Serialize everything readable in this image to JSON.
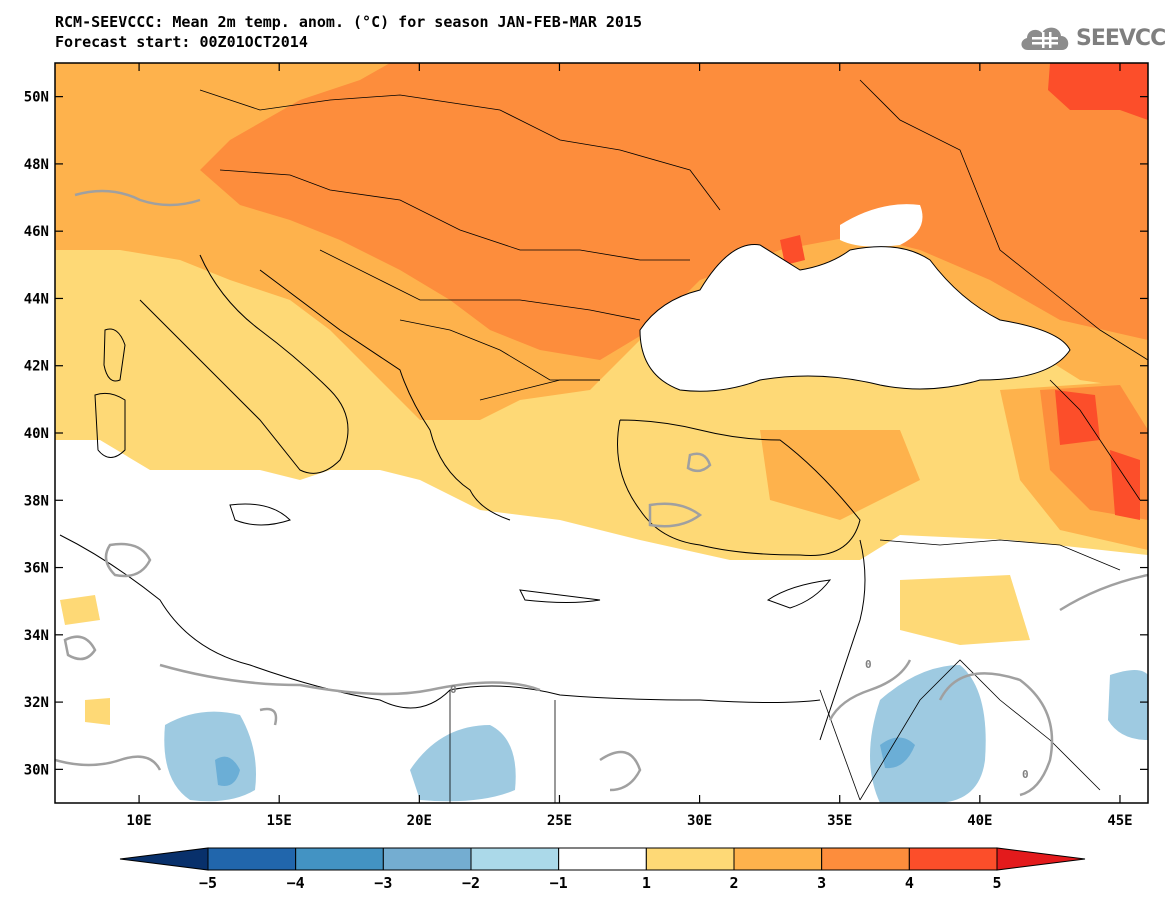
{
  "title": {
    "line1": "RCM-SEEVCCC: Mean 2m temp. anom. (°C) for season JAN-FEB-MAR 2015",
    "line2": "Forecast start: 00Z01OCT2014"
  },
  "logo": {
    "text": "SEEVCCC",
    "icon": "cloud-icon"
  },
  "map": {
    "lon_range": [
      7,
      46
    ],
    "lat_range": [
      29,
      51
    ],
    "lon_ticks": [
      "10E",
      "15E",
      "20E",
      "25E",
      "30E",
      "35E",
      "40E",
      "45E"
    ],
    "lat_ticks": [
      "50N",
      "48N",
      "46N",
      "44N",
      "42N",
      "40N",
      "38N",
      "36N",
      "34N",
      "32N",
      "30N"
    ],
    "contour_label": "0"
  },
  "colorbar": {
    "tick_labels": [
      "-5",
      "-4",
      "-3",
      "-2",
      "-1",
      "1",
      "2",
      "3",
      "4",
      "5"
    ],
    "colors": [
      "#08306b",
      "#2166ac",
      "#4393c3",
      "#74add1",
      "#abd9e9",
      "#ffffff",
      "#fed976",
      "#feb24c",
      "#fd8d3c",
      "#fc4e2a",
      "#e31a1c"
    ]
  }
}
